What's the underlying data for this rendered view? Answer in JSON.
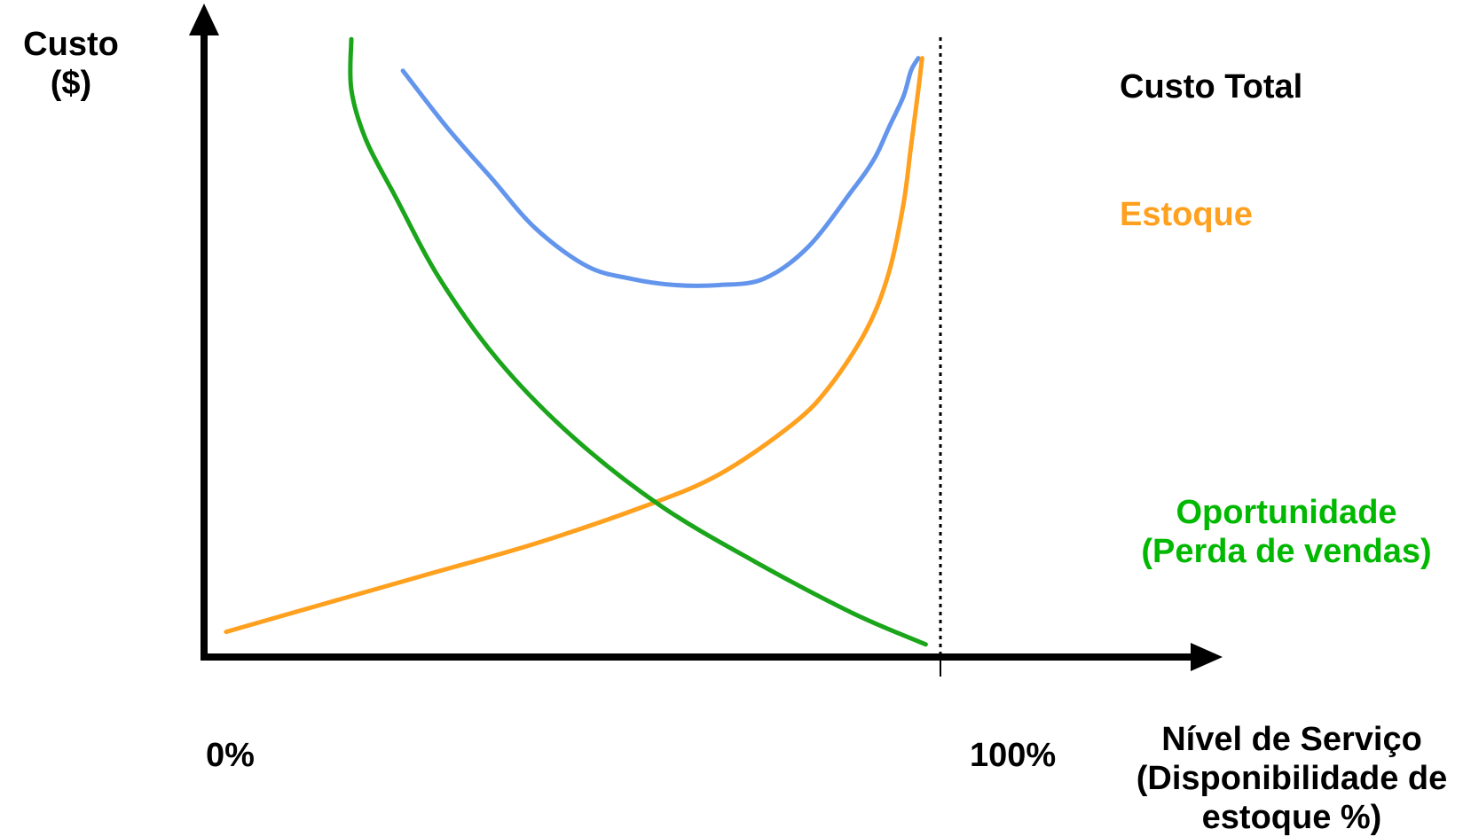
{
  "chart_data": {
    "type": "line",
    "title": "",
    "ylabel": [
      "Custo",
      "($)"
    ],
    "xlabel": [
      "Nível de Serviço",
      "(Disponibilidade de",
      "estoque %)"
    ],
    "x_ticks": [
      "0%",
      "100%"
    ],
    "xlim": [
      0,
      1.4
    ],
    "ylim": [
      0,
      1.0
    ],
    "reference_line": {
      "x": 1.0,
      "style": "dotted"
    },
    "grid": false,
    "legend_placement": "right",
    "series": [
      {
        "name": "Custo Total",
        "color": "#6495ED",
        "legend_color": "#000000",
        "x": [
          0.27,
          0.33,
          0.39,
          0.45,
          0.52,
          0.58,
          0.64,
          0.7,
          0.76,
          0.82,
          0.88,
          0.91,
          0.93,
          0.95,
          0.96,
          0.97
        ],
        "y": [
          0.93,
          0.84,
          0.76,
          0.68,
          0.62,
          0.6,
          0.59,
          0.59,
          0.6,
          0.65,
          0.74,
          0.79,
          0.84,
          0.89,
          0.93,
          0.95
        ]
      },
      {
        "name": "Estoque",
        "color": "#FFA01E",
        "legend_color": "#FFA01E",
        "x": [
          0.03,
          0.15,
          0.3,
          0.45,
          0.6,
          0.7,
          0.8,
          0.85,
          0.9,
          0.93,
          0.95,
          0.96,
          0.97,
          0.975
        ],
        "y": [
          0.04,
          0.08,
          0.13,
          0.18,
          0.24,
          0.29,
          0.37,
          0.43,
          0.52,
          0.61,
          0.72,
          0.81,
          0.9,
          0.95
        ]
      },
      {
        "name": "Oportunidade",
        "subname": "(Perda de vendas)",
        "color": "#1AA51A",
        "legend_color": "#00B800",
        "x": [
          0.2,
          0.2,
          0.22,
          0.26,
          0.32,
          0.4,
          0.5,
          0.62,
          0.75,
          0.88,
          0.98
        ],
        "y": [
          0.98,
          0.9,
          0.82,
          0.73,
          0.6,
          0.47,
          0.35,
          0.24,
          0.15,
          0.07,
          0.02
        ]
      }
    ]
  }
}
